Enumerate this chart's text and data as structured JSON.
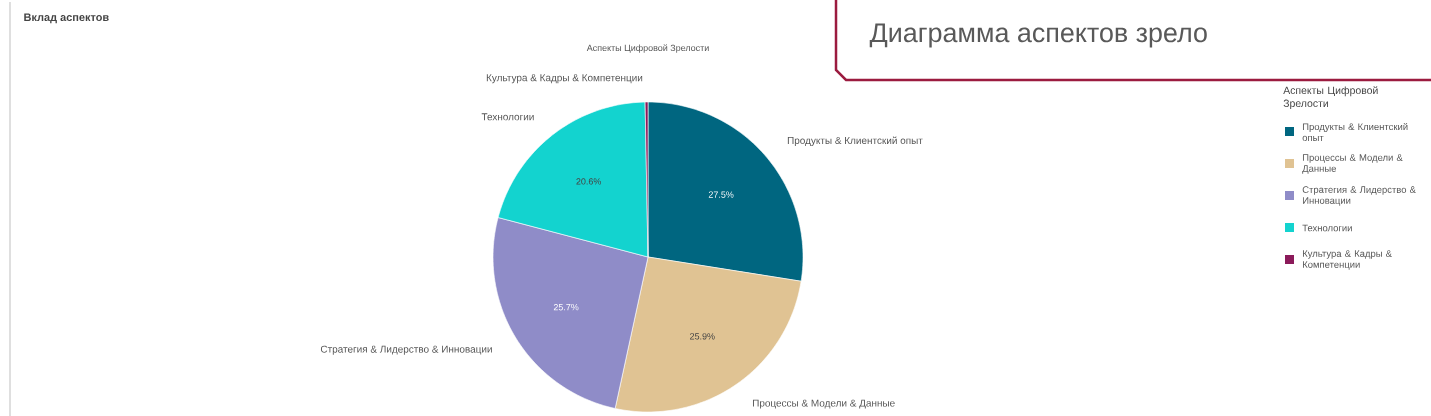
{
  "chart_data": {
    "type": "pie",
    "title": "Вклад аспектов",
    "subtitle": "Аспекты Цифровой Зрелости",
    "legend_title": "Аспекты Цифровой Зрелости",
    "categories": [
      "Продукты & Клиентский опыт",
      "Процессы & Модели & Данные",
      "Стратегия & Лидерство & Инновации",
      "Технологии",
      "Культура & Кадры & Компетенции"
    ],
    "values": [
      27.5,
      25.9,
      25.7,
      20.6,
      0.3
    ],
    "colors": [
      "#006680",
      "#e0c393",
      "#8f8cc8",
      "#13d3cf",
      "#8b1a5a"
    ],
    "value_labels": [
      "27.5%",
      "25.9%",
      "25.7%",
      "20.6%",
      null
    ],
    "legend": "right",
    "annotations": [
      "Диаграмма аспектов зрело"
    ]
  }
}
